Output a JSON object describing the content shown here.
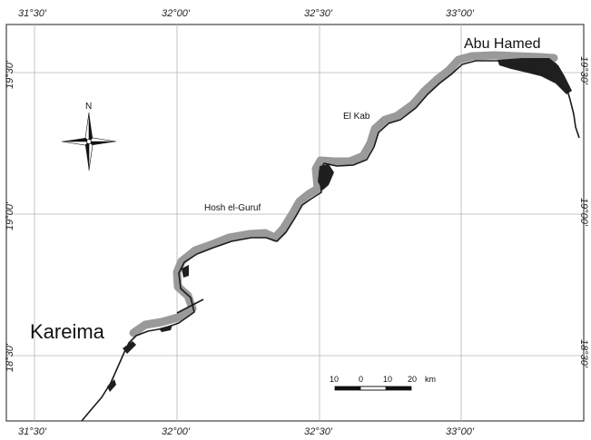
{
  "map": {
    "longitude_labels": [
      "31°30'",
      "32°00'",
      "32°30'",
      "33°00'"
    ],
    "latitude_labels": [
      "19°30'",
      "19°00'",
      "18°30'"
    ],
    "right_latitude_labels": [
      "19°30'",
      "19°00'",
      "18°30'"
    ],
    "places": {
      "abu_hamed": "Abu Hamed",
      "el_kab": "El Kab",
      "hosh_el_guruf": "Hosh el-Guruf",
      "kareima": "Kareima"
    },
    "north_label": "N",
    "scale_bar": {
      "labels": [
        "10",
        "0",
        "10",
        "20"
      ],
      "unit": "km"
    }
  },
  "colors": {
    "river": "#1a1a1a",
    "survey_band": "#9a9a9a",
    "grid": "#b5b5b5",
    "frame": "#444444"
  }
}
